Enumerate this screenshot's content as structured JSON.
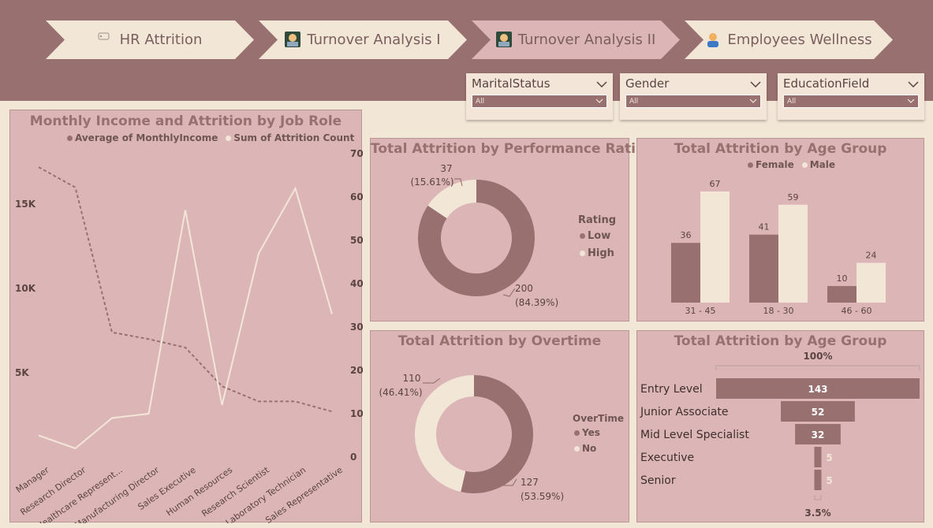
{
  "colors": {
    "header": "#98706f",
    "panel": "#dcb6b7",
    "dark": "#98706f",
    "light": "#f2e6d6"
  },
  "nav": [
    {
      "label": "HR Attrition",
      "icon": "tag-icon"
    },
    {
      "label": "Turnover Analysis I",
      "icon": "technologist-icon"
    },
    {
      "label": "Turnover Analysis II",
      "icon": "technologist-icon"
    },
    {
      "label": "Employees Wellness",
      "icon": "person-icon"
    }
  ],
  "slicers": [
    {
      "title": "MaritalStatus",
      "value": "All"
    },
    {
      "title": "Gender",
      "value": "All"
    },
    {
      "title": "EducationField",
      "value": "All"
    }
  ],
  "income_chart": {
    "title": "Monthly Income and Attrition by Job Role",
    "legend": [
      "Average of MonthlyIncome",
      "Sum of Attrition Count"
    ],
    "left_ticks": [
      "15K",
      "10K",
      "5K"
    ],
    "right_ticks": [
      "70",
      "60",
      "50",
      "40",
      "30",
      "20",
      "10",
      "0"
    ]
  },
  "perf_chart": {
    "title": "Total Attrition by Performance Rating",
    "legend_title": "Rating",
    "legend": [
      "Low",
      "High"
    ],
    "labels": {
      "low_value": "200",
      "low_pct": "(84.39%)",
      "high_value": "37",
      "high_pct": "(15.61%)"
    }
  },
  "age_chart": {
    "title": "Total Attrition by Age Group",
    "legend": [
      "Female",
      "Male"
    ]
  },
  "overtime_chart": {
    "title": "Total Attrition by Overtime",
    "legend_title": "OverTime",
    "legend": [
      "Yes",
      "No"
    ],
    "labels": {
      "yes_value": "127",
      "yes_pct": "(53.59%)",
      "no_value": "110",
      "no_pct": "(46.41%)"
    }
  },
  "funnel_chart": {
    "title": "Total Attrition by Age Group",
    "top_label": "100%",
    "bottom_label": "3.5%"
  },
  "chart_data": [
    {
      "type": "line",
      "title": "Monthly Income and Attrition by Job Role",
      "categories": [
        "Manager",
        "Research Director",
        "Healthcare Represent...",
        "Manufacturing Director",
        "Sales Executive",
        "Human Resources",
        "Research Scientist",
        "Laboratory Technician",
        "Sales Representative"
      ],
      "series": [
        {
          "name": "Average of MonthlyIncome",
          "axis": "left",
          "values": [
            17200,
            16000,
            7400,
            7000,
            6500,
            4200,
            3300,
            3300,
            2700
          ]
        },
        {
          "name": "Sum of Attrition Count",
          "axis": "right",
          "values": [
            5,
            2,
            9,
            10,
            57,
            12,
            47,
            62,
            33
          ]
        }
      ],
      "ylim_left": [
        0,
        18000
      ],
      "ylim_right": [
        0,
        70
      ]
    },
    {
      "type": "pie",
      "title": "Total Attrition by Performance Rating",
      "slices": [
        {
          "name": "Low",
          "value": 200,
          "pct": 84.39
        },
        {
          "name": "High",
          "value": 37,
          "pct": 15.61
        }
      ]
    },
    {
      "type": "bar",
      "title": "Total Attrition by Age Group",
      "categories": [
        "31 - 45",
        "18 - 30",
        "46 - 60"
      ],
      "series": [
        {
          "name": "Female",
          "values": [
            36,
            41,
            10
          ]
        },
        {
          "name": "Male",
          "values": [
            67,
            59,
            24
          ]
        }
      ],
      "ylim": [
        0,
        70
      ]
    },
    {
      "type": "pie",
      "title": "Total Attrition by Overtime",
      "slices": [
        {
          "name": "Yes",
          "value": 127,
          "pct": 53.59
        },
        {
          "name": "No",
          "value": 110,
          "pct": 46.41
        }
      ]
    },
    {
      "type": "bar",
      "title": "Total Attrition by Age Group",
      "orientation": "funnel",
      "categories": [
        "Entry Level",
        "Junior Associate",
        "Mid Level Specialist",
        "Executive",
        "Senior"
      ],
      "values": [
        143,
        52,
        32,
        5,
        5
      ]
    }
  ]
}
